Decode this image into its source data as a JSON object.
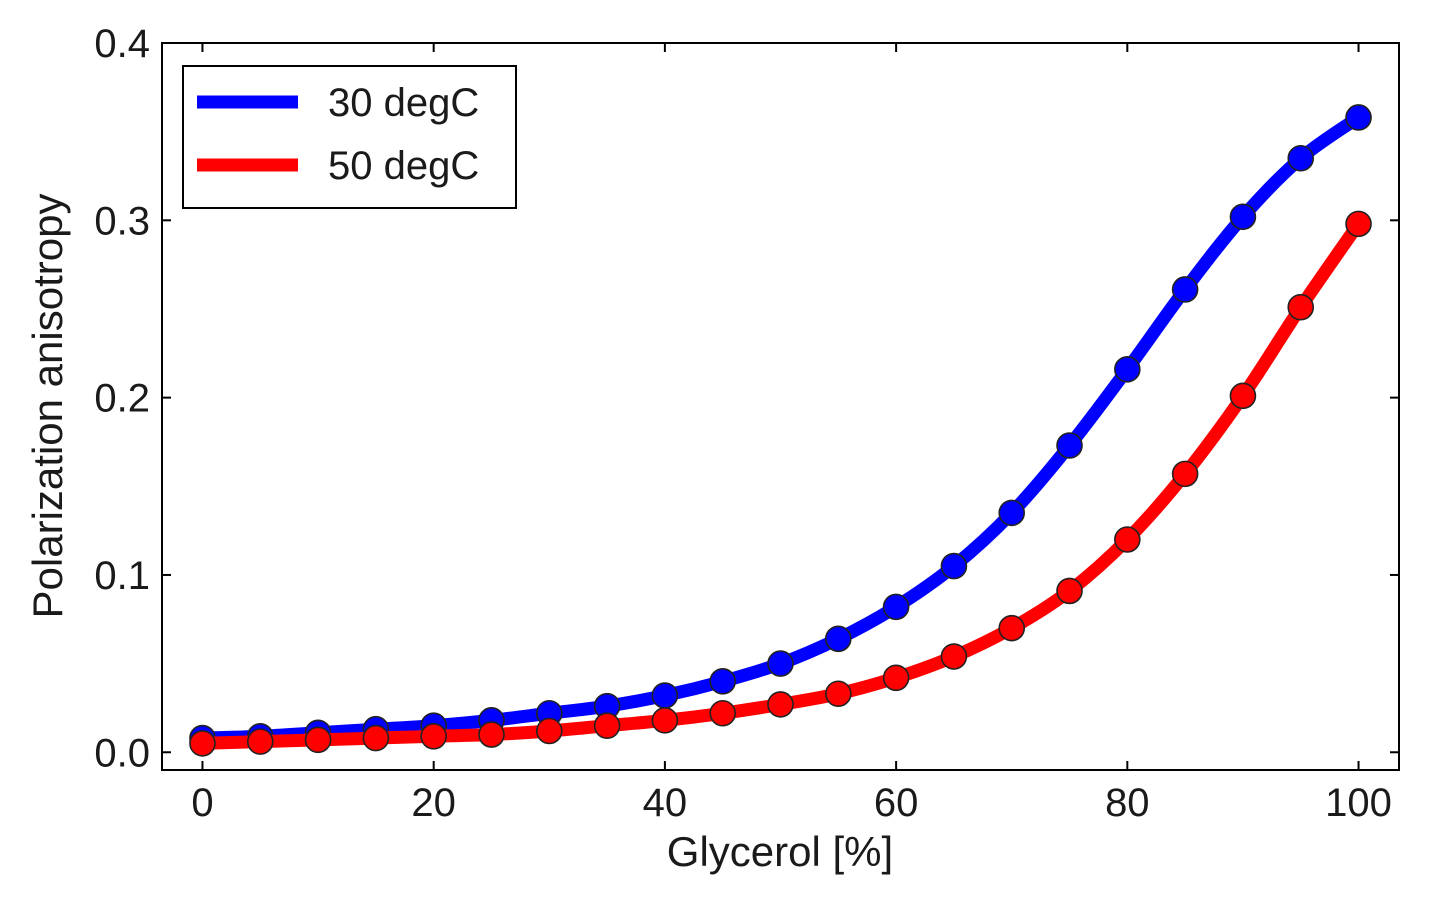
{
  "chart_data": {
    "type": "line",
    "title": "",
    "xlabel": "Glycerol [%]",
    "ylabel": "Polarization anisotropy",
    "xlim": [
      -3.5,
      103.5
    ],
    "ylim": [
      -0.01,
      0.4
    ],
    "xticks": [
      0,
      20,
      40,
      60,
      80,
      100
    ],
    "xtick_labels": [
      "0",
      "20",
      "40",
      "60",
      "80",
      "100"
    ],
    "yticks": [
      0.0,
      0.1,
      0.2,
      0.3,
      0.4
    ],
    "ytick_labels": [
      "0.0",
      "0.1",
      "0.2",
      "0.3",
      "0.4"
    ],
    "legend_position": "top-left",
    "x": [
      0,
      5,
      10,
      15,
      20,
      25,
      30,
      35,
      40,
      45,
      50,
      55,
      60,
      65,
      70,
      75,
      80,
      85,
      90,
      95,
      100
    ],
    "series": [
      {
        "name": "30 degC",
        "color": "#0000ff",
        "values": [
          0.008,
          0.009,
          0.011,
          0.013,
          0.015,
          0.018,
          0.022,
          0.026,
          0.032,
          0.04,
          0.05,
          0.064,
          0.082,
          0.105,
          0.135,
          0.173,
          0.216,
          0.261,
          0.302,
          0.335,
          0.358
        ]
      },
      {
        "name": "50 degC",
        "color": "#ff0000",
        "values": [
          0.005,
          0.006,
          0.007,
          0.008,
          0.009,
          0.01,
          0.012,
          0.015,
          0.018,
          0.022,
          0.027,
          0.033,
          0.042,
          0.054,
          0.07,
          0.091,
          0.12,
          0.157,
          0.201,
          0.251,
          0.298
        ]
      }
    ]
  }
}
